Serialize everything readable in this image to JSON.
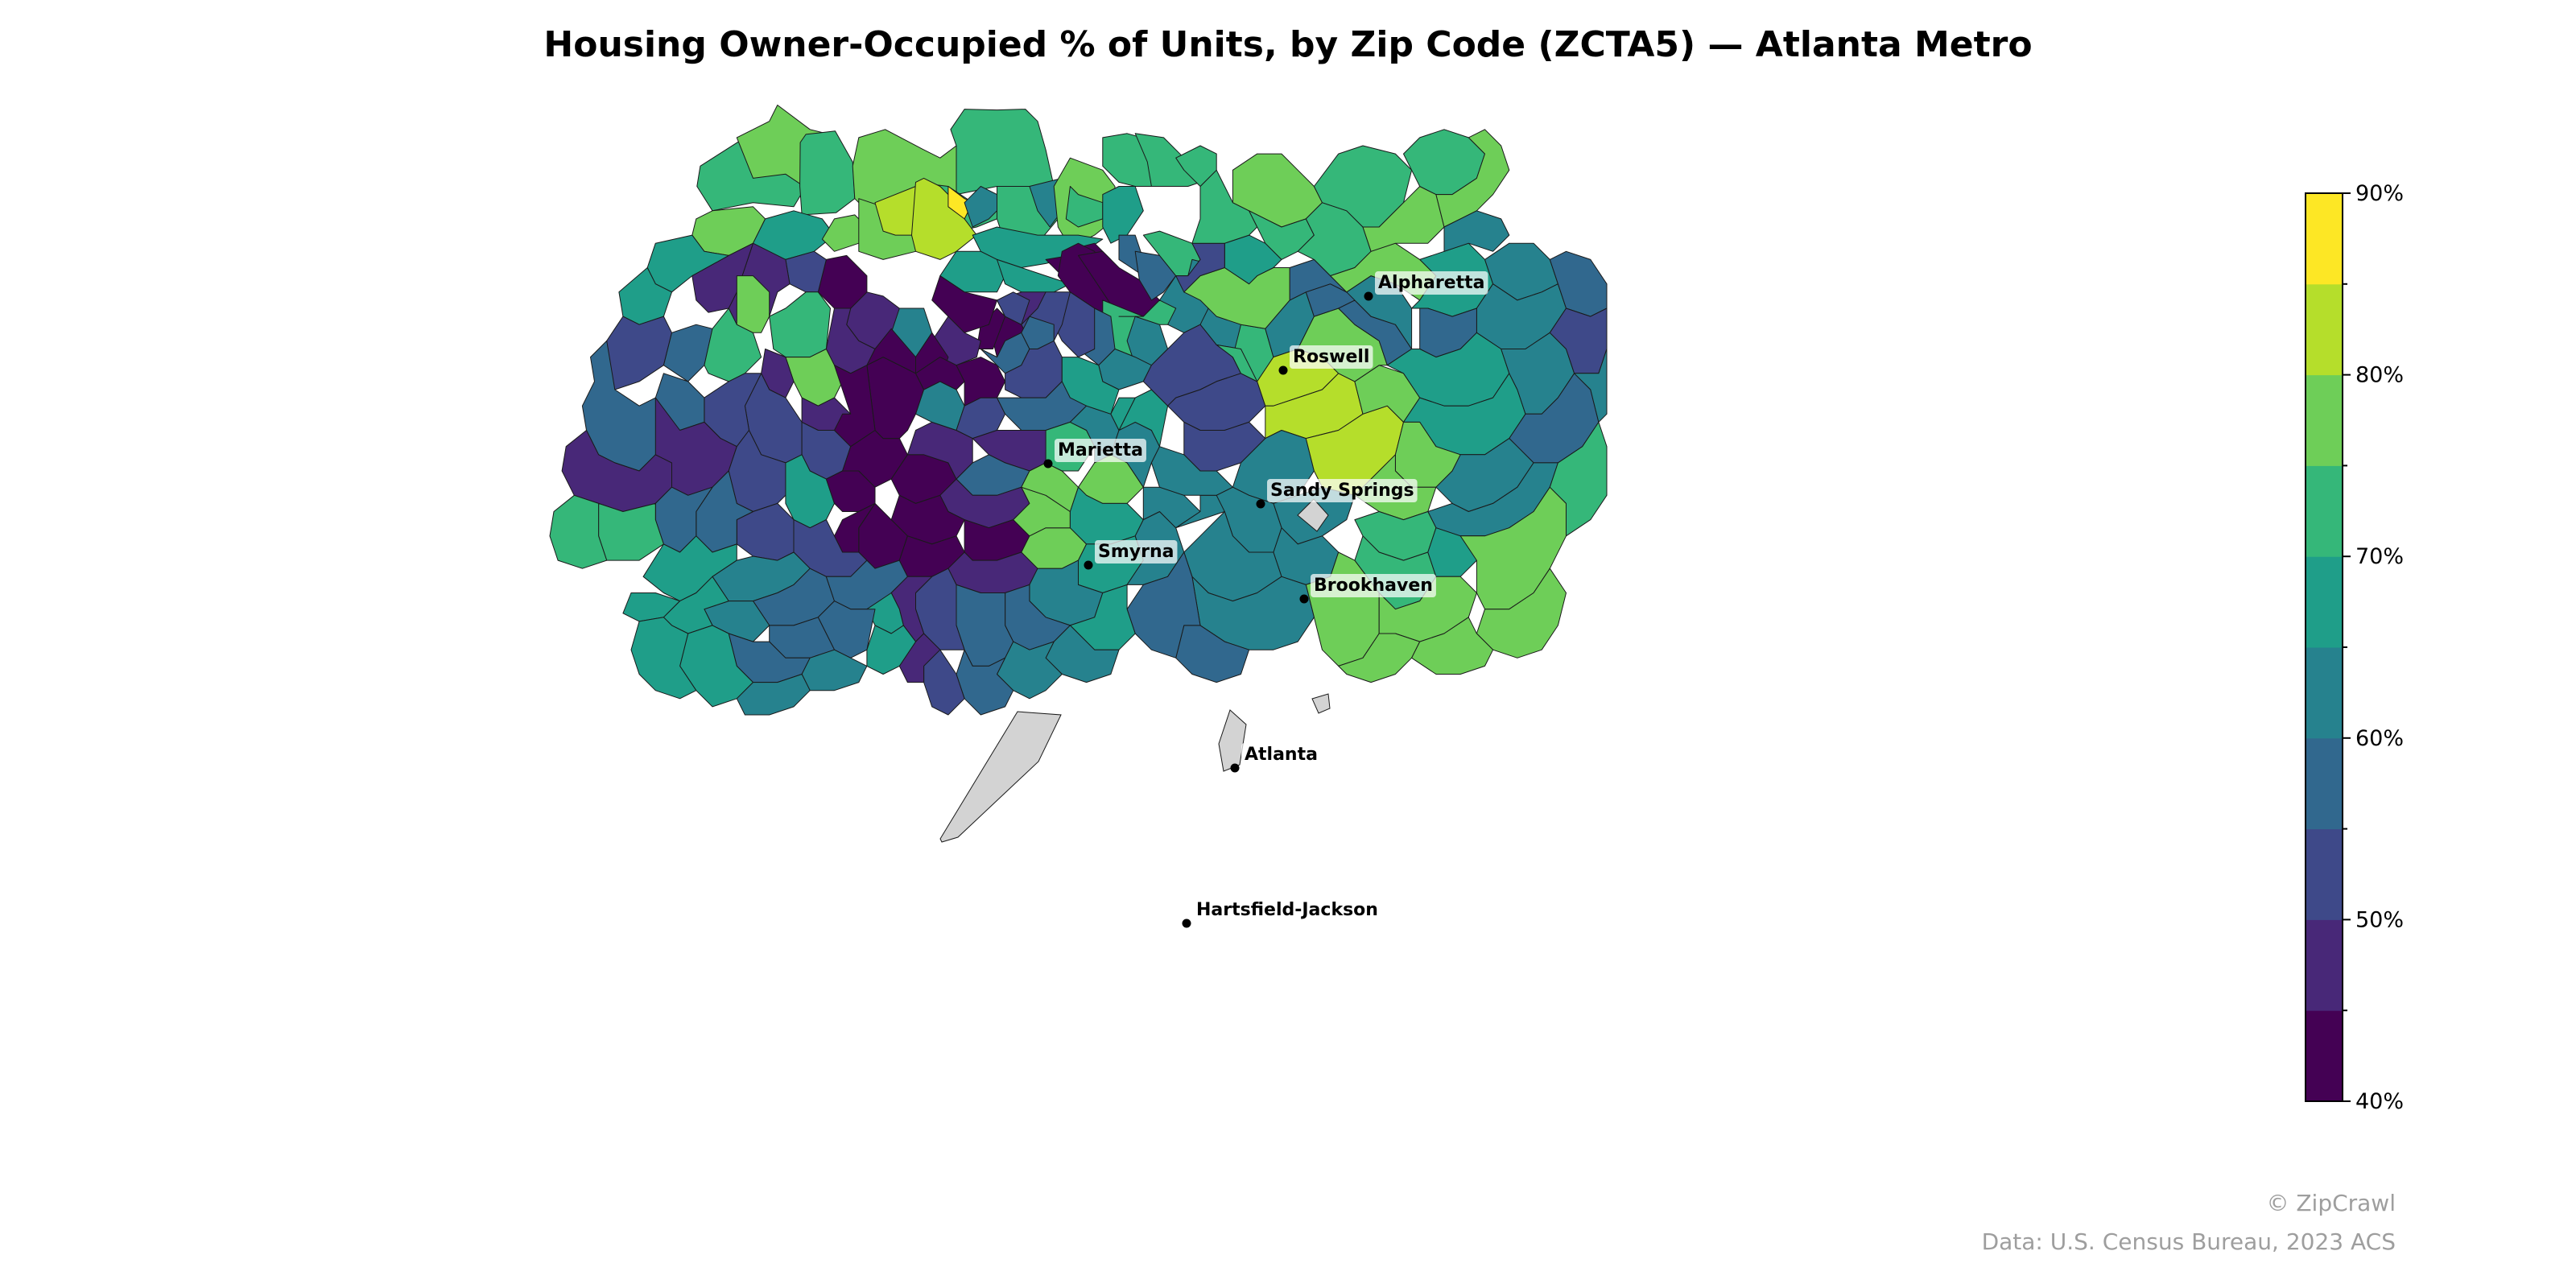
{
  "title": "Housing Owner-Occupied % of Units, by Zip Code (ZCTA5) — Atlanta Metro",
  "colorbar": {
    "min": 40,
    "max": 90,
    "step": 5,
    "tick_labels": [
      "40%",
      "50%",
      "60%",
      "70%",
      "80%",
      "90%"
    ],
    "colors": [
      "#440154",
      "#482878",
      "#3e4989",
      "#31688e",
      "#26828e",
      "#1f9e89",
      "#35b779",
      "#6ece58",
      "#b5de2b",
      "#fde725"
    ],
    "no_data_color": "#d3d3d3"
  },
  "cities": [
    {
      "name": "Alpharetta"
    },
    {
      "name": "Roswell"
    },
    {
      "name": "Marietta"
    },
    {
      "name": "Sandy Springs"
    },
    {
      "name": "Smyrna"
    },
    {
      "name": "Brookhaven"
    },
    {
      "name": "Atlanta"
    },
    {
      "name": "Hartsfield-Jackson"
    }
  ],
  "credits": {
    "brand": "© ZipCrawl",
    "source": "Data: U.S. Census Bureau, 2023 ACS"
  }
}
